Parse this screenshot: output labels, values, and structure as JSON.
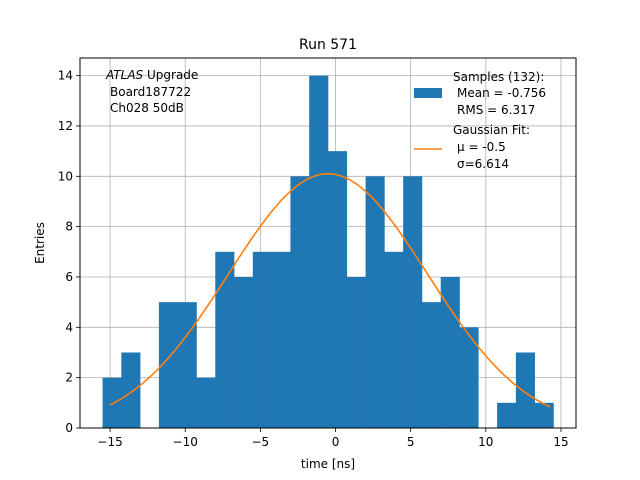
{
  "chart_data": {
    "type": "bar",
    "title": "Run 571",
    "xlabel": "time [ns]",
    "ylabel": "Entries",
    "xlim": [
      -17,
      16
    ],
    "ylim": [
      0,
      14.7
    ],
    "grid": true,
    "xticks": [
      -15,
      -10,
      -5,
      0,
      5,
      10,
      15
    ],
    "yticks": [
      0,
      2,
      4,
      6,
      8,
      10,
      12,
      14
    ],
    "bins": [
      {
        "x0": -15.5,
        "x1": -14.25,
        "count": 2
      },
      {
        "x0": -14.25,
        "x1": -13.0,
        "count": 3
      },
      {
        "x0": -13.0,
        "x1": -11.75,
        "count": 0
      },
      {
        "x0": -11.75,
        "x1": -10.5,
        "count": 5
      },
      {
        "x0": -10.5,
        "x1": -9.25,
        "count": 5
      },
      {
        "x0": -9.25,
        "x1": -8.0,
        "count": 2
      },
      {
        "x0": -8.0,
        "x1": -6.75,
        "count": 7
      },
      {
        "x0": -6.75,
        "x1": -5.5,
        "count": 6
      },
      {
        "x0": -5.5,
        "x1": -4.25,
        "count": 7
      },
      {
        "x0": -4.25,
        "x1": -3.0,
        "count": 7
      },
      {
        "x0": -3.0,
        "x1": -1.75,
        "count": 10
      },
      {
        "x0": -1.75,
        "x1": -0.5,
        "count": 14
      },
      {
        "x0": -0.5,
        "x1": 0.75,
        "count": 11
      },
      {
        "x0": 0.75,
        "x1": 2.0,
        "count": 6
      },
      {
        "x0": 2.0,
        "x1": 3.25,
        "count": 10
      },
      {
        "x0": 3.25,
        "x1": 4.5,
        "count": 7
      },
      {
        "x0": 4.5,
        "x1": 5.75,
        "count": 10
      },
      {
        "x0": 5.75,
        "x1": 7.0,
        "count": 5
      },
      {
        "x0": 7.0,
        "x1": 8.25,
        "count": 6
      },
      {
        "x0": 8.25,
        "x1": 9.5,
        "count": 4
      },
      {
        "x0": 9.5,
        "x1": 10.75,
        "count": 0
      },
      {
        "x0": 10.75,
        "x1": 12.0,
        "count": 1
      },
      {
        "x0": 12.0,
        "x1": 13.25,
        "count": 3
      },
      {
        "x0": 13.25,
        "x1": 14.5,
        "count": 1
      }
    ],
    "fit": {
      "type": "gaussian",
      "amplitude": 10.1,
      "mu": -0.5,
      "sigma": 6.614,
      "x_range": [
        -15,
        14.3
      ]
    },
    "colors": {
      "bars": "#1f77b4",
      "fit": "#ff7f0e",
      "grid": "#b0b0b0"
    },
    "annotation": {
      "experiment_italic": "ATLAS",
      "experiment_rest": " Upgrade",
      "board": "Board187722",
      "channel": "Ch028 50dB"
    },
    "legend": {
      "placement": "top-right",
      "samples_title": "Samples (132):",
      "samples_mean": "Mean = -0.756",
      "samples_rms": "RMS = 6.317",
      "fit_title": "Gaussian Fit:",
      "fit_mu": "μ = -0.5",
      "fit_sigma": "σ=6.614"
    }
  }
}
